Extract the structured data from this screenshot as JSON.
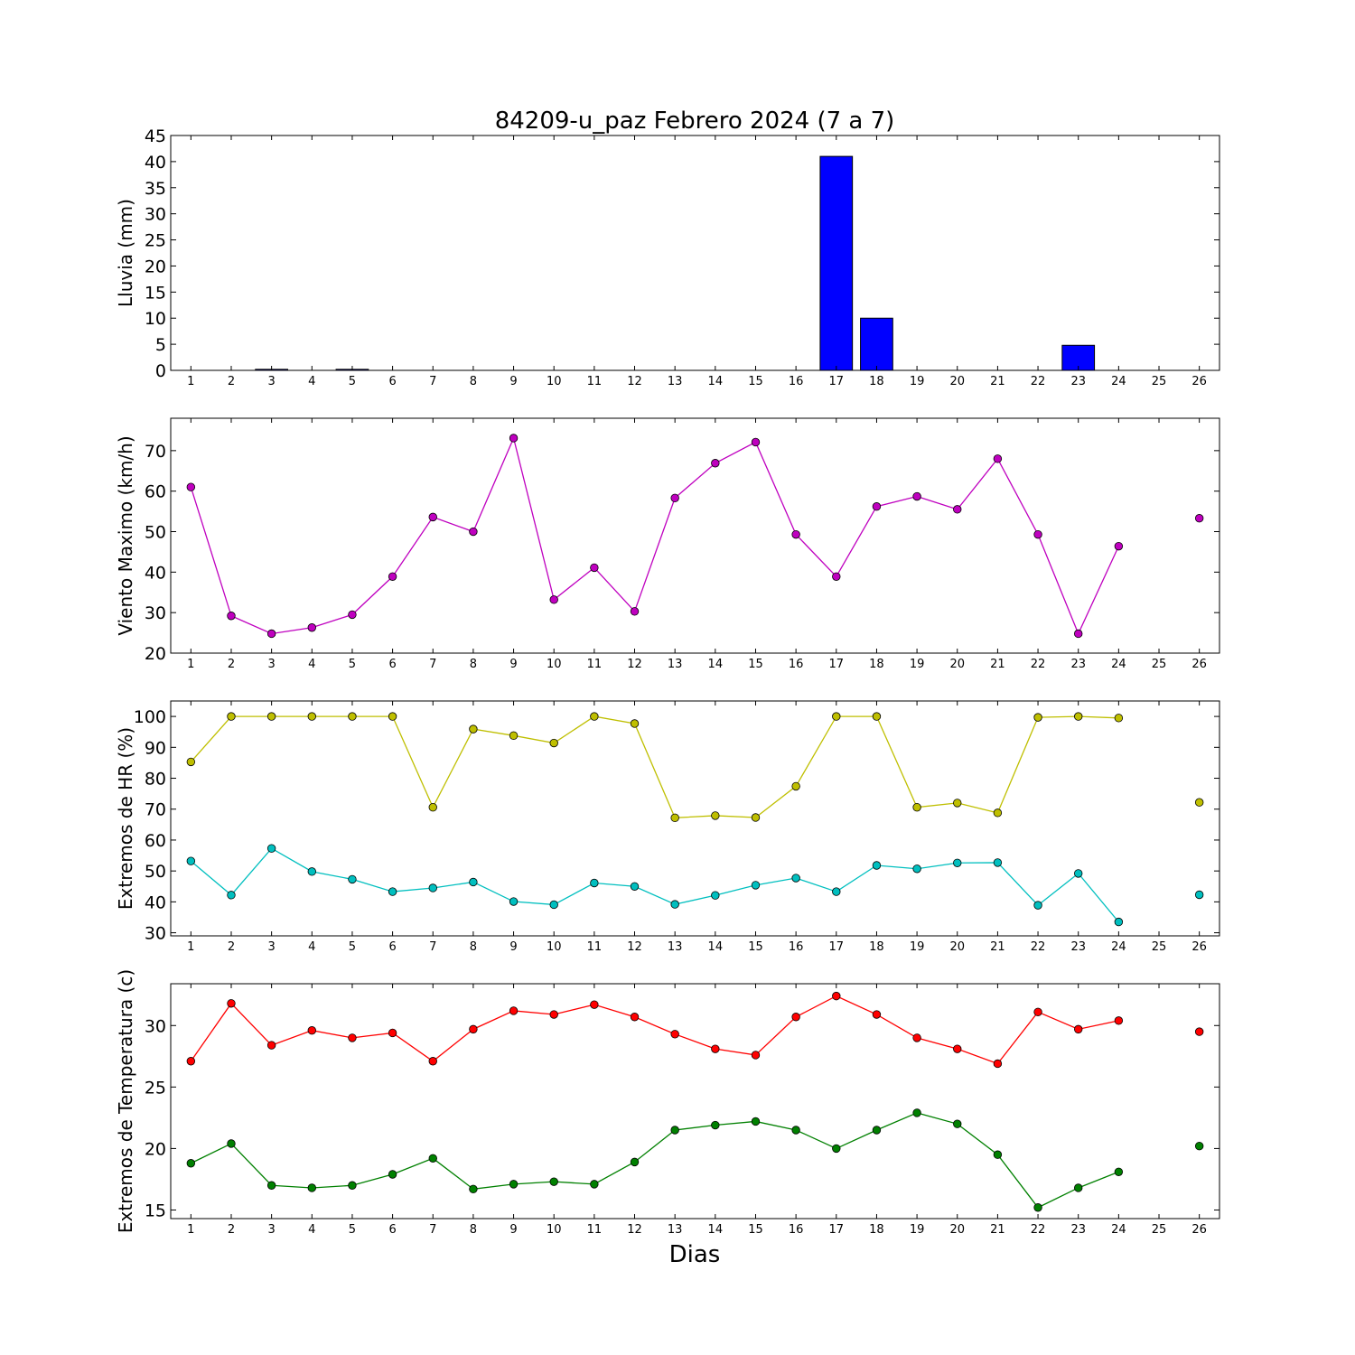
{
  "title": "84209-u_paz Febrero 2024  (7 a 7)",
  "xlabel": "Dias",
  "days": [
    1,
    2,
    3,
    4,
    5,
    6,
    7,
    8,
    9,
    10,
    11,
    12,
    13,
    14,
    15,
    16,
    17,
    18,
    19,
    20,
    21,
    22,
    23,
    24,
    25,
    26
  ],
  "chart_data": [
    {
      "type": "bar",
      "ylabel": "Lluvia (mm)",
      "ylim": [
        0,
        45
      ],
      "yticks": [
        0,
        5,
        10,
        15,
        20,
        25,
        30,
        35,
        40,
        45
      ],
      "xlim": [
        0.5,
        26.5
      ],
      "color": "#0000ff",
      "x": [
        1,
        2,
        3,
        4,
        5,
        6,
        7,
        8,
        9,
        10,
        11,
        12,
        13,
        14,
        15,
        16,
        17,
        18,
        19,
        20,
        21,
        22,
        23,
        24,
        25,
        26
      ],
      "values": [
        0,
        0,
        0.2,
        0,
        0.2,
        0,
        0,
        0,
        0,
        0,
        0,
        0,
        0,
        0,
        0,
        0,
        41,
        10,
        0,
        0,
        0,
        0,
        4.8,
        0,
        0,
        0
      ]
    },
    {
      "type": "line",
      "ylabel": "Viento Maximo (km/h)",
      "ylim": [
        20,
        78
      ],
      "yticks": [
        20,
        30,
        40,
        50,
        60,
        70
      ],
      "xlim": [
        0.5,
        26.5
      ],
      "series": [
        {
          "color": "#bf00bf",
          "x": [
            1,
            2,
            3,
            4,
            5,
            6,
            7,
            8,
            9,
            10,
            11,
            12,
            13,
            14,
            15,
            16,
            17,
            18,
            19,
            20,
            21,
            22,
            23,
            24,
            25,
            26
          ],
          "values": [
            61,
            29.2,
            24.8,
            26.3,
            29.5,
            38.9,
            53.6,
            50,
            73.1,
            33.2,
            41.1,
            30.3,
            58.3,
            66.9,
            72.1,
            49.3,
            38.9,
            56.2,
            58.7,
            55.5,
            68,
            49.3,
            24.8,
            46.4,
            null,
            53.3
          ]
        }
      ]
    },
    {
      "type": "line",
      "ylabel": "Extremos de HR (%)",
      "ylim": [
        29,
        105
      ],
      "yticks": [
        30,
        40,
        50,
        60,
        70,
        80,
        90,
        100
      ],
      "xlim": [
        0.5,
        26.5
      ],
      "series": [
        {
          "color": "#bfbf00",
          "x": [
            1,
            2,
            3,
            4,
            5,
            6,
            7,
            8,
            9,
            10,
            11,
            12,
            13,
            14,
            15,
            16,
            17,
            18,
            19,
            20,
            21,
            22,
            23,
            24,
            25,
            26
          ],
          "values": [
            85.3,
            100,
            100,
            100,
            100,
            100,
            70.6,
            95.9,
            93.8,
            91.4,
            100,
            97.7,
            67.2,
            67.9,
            67.3,
            77.4,
            100,
            100,
            70.6,
            72,
            68.8,
            99.7,
            100,
            99.5,
            null,
            72.2
          ]
        },
        {
          "color": "#00bfbf",
          "x": [
            1,
            2,
            3,
            4,
            5,
            6,
            7,
            8,
            9,
            10,
            11,
            12,
            13,
            14,
            15,
            16,
            17,
            18,
            19,
            20,
            21,
            22,
            23,
            24,
            25,
            26
          ],
          "values": [
            53.2,
            42.2,
            57.3,
            49.8,
            47.3,
            43.3,
            44.5,
            46.4,
            40.1,
            39.1,
            46.1,
            45,
            39.2,
            42.1,
            45.4,
            47.7,
            43.3,
            51.8,
            50.7,
            52.6,
            52.7,
            38.9,
            49.2,
            33.5,
            null,
            42.3
          ]
        }
      ]
    },
    {
      "type": "line",
      "ylabel": "Extremos de Temperatura (c)",
      "ylim": [
        14.3,
        33.4
      ],
      "yticks": [
        15,
        20,
        25,
        30
      ],
      "xlim": [
        0.5,
        26.5
      ],
      "series": [
        {
          "color": "#ff0000",
          "x": [
            1,
            2,
            3,
            4,
            5,
            6,
            7,
            8,
            9,
            10,
            11,
            12,
            13,
            14,
            15,
            16,
            17,
            18,
            19,
            20,
            21,
            22,
            23,
            24,
            25,
            26
          ],
          "values": [
            27.1,
            31.8,
            28.4,
            29.6,
            29,
            29.4,
            27.1,
            29.7,
            31.2,
            30.9,
            31.7,
            30.7,
            29.3,
            28.1,
            27.6,
            30.7,
            32.4,
            30.9,
            29,
            28.1,
            26.9,
            31.1,
            29.7,
            30.4,
            null,
            29.5
          ]
        },
        {
          "color": "#008000",
          "x": [
            1,
            2,
            3,
            4,
            5,
            6,
            7,
            8,
            9,
            10,
            11,
            12,
            13,
            14,
            15,
            16,
            17,
            18,
            19,
            20,
            21,
            22,
            23,
            24,
            25,
            26
          ],
          "values": [
            18.8,
            20.4,
            17,
            16.8,
            17,
            17.9,
            19.2,
            16.7,
            17.1,
            17.3,
            17.1,
            18.9,
            21.5,
            21.9,
            22.2,
            21.5,
            20,
            21.5,
            22.9,
            22,
            19.5,
            15.2,
            16.8,
            18.1,
            null,
            20.2
          ]
        }
      ]
    }
  ]
}
